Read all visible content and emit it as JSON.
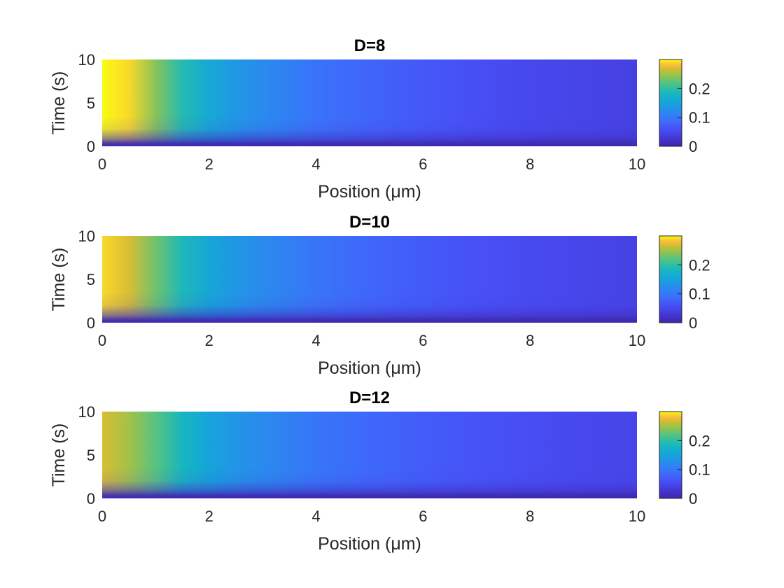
{
  "chart_data": [
    {
      "type": "heatmap",
      "title": "D=8",
      "xlabel": "Position (μm)",
      "ylabel": "Time (s)",
      "xlim": [
        0,
        10
      ],
      "ylim": [
        0,
        10
      ],
      "x_ticks": [
        "0",
        "2",
        "4",
        "6",
        "8",
        "10"
      ],
      "y_ticks": [
        "0",
        "5",
        "10"
      ],
      "colorbar": {
        "range": [
          0,
          0.3
        ],
        "ticks": [
          "0",
          "0.1",
          "0.2"
        ],
        "colormap": "parula"
      },
      "concentration_profile": {
        "x": [
          0,
          0.5,
          1,
          1.5,
          2,
          2.5,
          3,
          4,
          5,
          6,
          7,
          8,
          9,
          10
        ],
        "values": [
          0.3,
          0.29,
          0.24,
          0.19,
          0.16,
          0.135,
          0.12,
          0.095,
          0.08,
          0.068,
          0.058,
          0.05,
          0.045,
          0.04
        ]
      },
      "grid": false
    },
    {
      "type": "heatmap",
      "title": "D=10",
      "xlabel": "Position (μm)",
      "ylabel": "Time (s)",
      "xlim": [
        0,
        10
      ],
      "ylim": [
        0,
        10
      ],
      "x_ticks": [
        "0",
        "2",
        "4",
        "6",
        "8",
        "10"
      ],
      "y_ticks": [
        "0",
        "5",
        "10"
      ],
      "colorbar": {
        "range": [
          0,
          0.3
        ],
        "ticks": [
          "0",
          "0.1",
          "0.2"
        ],
        "colormap": "parula"
      },
      "concentration_profile": {
        "x": [
          0,
          0.5,
          1,
          1.5,
          2,
          2.5,
          3,
          4,
          5,
          6,
          7,
          8,
          9,
          10
        ],
        "values": [
          0.29,
          0.27,
          0.23,
          0.185,
          0.155,
          0.135,
          0.12,
          0.097,
          0.082,
          0.07,
          0.06,
          0.053,
          0.048,
          0.043
        ]
      },
      "grid": false
    },
    {
      "type": "heatmap",
      "title": "D=12",
      "xlabel": "Position (μm)",
      "ylabel": "Time (s)",
      "xlim": [
        0,
        10
      ],
      "ylim": [
        0,
        10
      ],
      "x_ticks": [
        "0",
        "2",
        "4",
        "6",
        "8",
        "10"
      ],
      "y_ticks": [
        "0",
        "5",
        "10"
      ],
      "colorbar": {
        "range": [
          0,
          0.3
        ],
        "ticks": [
          "0",
          "0.1",
          "0.2"
        ],
        "colormap": "parula"
      },
      "concentration_profile": {
        "x": [
          0,
          0.5,
          1,
          1.5,
          2,
          2.5,
          3,
          4,
          5,
          6,
          7,
          8,
          9,
          10
        ],
        "values": [
          0.27,
          0.25,
          0.22,
          0.18,
          0.152,
          0.133,
          0.12,
          0.098,
          0.084,
          0.072,
          0.063,
          0.056,
          0.05,
          0.046
        ]
      },
      "grid": false
    }
  ]
}
